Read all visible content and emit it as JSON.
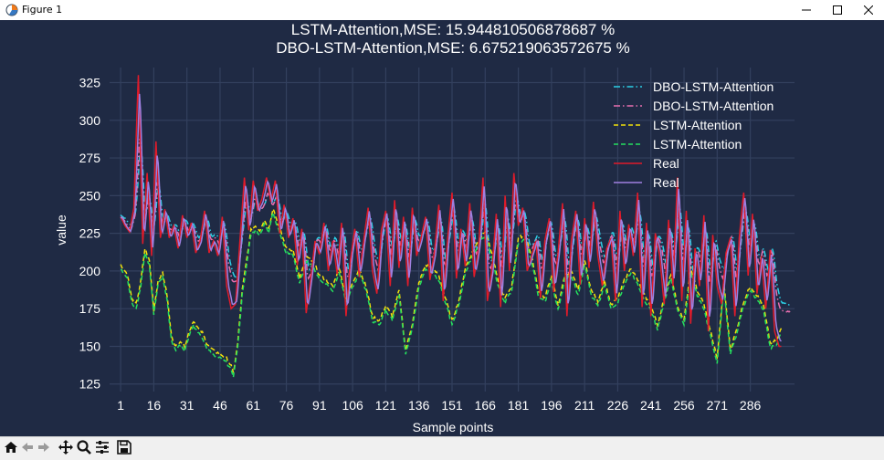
{
  "window": {
    "title": "Figure 1",
    "icons": [
      "matplotlib-icon",
      "minimize-icon",
      "maximize-icon",
      "close-icon"
    ]
  },
  "toolbar": {
    "icons": [
      "home-icon",
      "back-arrow-icon",
      "forward-arrow-icon",
      "pan-icon",
      "zoom-icon",
      "configure-subplots-icon",
      "save-icon"
    ]
  },
  "chart_data": {
    "type": "line",
    "title": "LSTM-Attention,MSE: 15.944810506878687 %",
    "subtitle": "DBO-LSTM-Attention,MSE: 6.675219063572675 %",
    "xlabel": "Sample points",
    "ylabel": "value",
    "xlim": [
      -4,
      306
    ],
    "ylim": [
      120,
      335
    ],
    "xticks": [
      1,
      16,
      31,
      46,
      61,
      76,
      91,
      106,
      121,
      136,
      151,
      166,
      181,
      196,
      211,
      226,
      241,
      256,
      271,
      286
    ],
    "yticks": [
      125,
      150,
      175,
      200,
      225,
      250,
      275,
      300,
      325
    ],
    "grid": true,
    "legend_position": "top-right",
    "background_color": "#1f2a44",
    "real_anchors": {
      "x": [
        1,
        3,
        5,
        7,
        9,
        11,
        13,
        15,
        17,
        19,
        21,
        23,
        25,
        27,
        29,
        31,
        33,
        35,
        37,
        39,
        41,
        43,
        45,
        47,
        49,
        51,
        53,
        55,
        57,
        59,
        61,
        63,
        65,
        67,
        69,
        71,
        73,
        75,
        77,
        79,
        81,
        83,
        85,
        87,
        89,
        91,
        93,
        95,
        97,
        99,
        101,
        103,
        105,
        107,
        109,
        111,
        113,
        115,
        117,
        119,
        121,
        123,
        125,
        127,
        129,
        131,
        133,
        135,
        137,
        139,
        141,
        143,
        145,
        147,
        149,
        151,
        153,
        155,
        157,
        159,
        161,
        163,
        165,
        167,
        169,
        171,
        173,
        175,
        177,
        179,
        181,
        183,
        185,
        187,
        189,
        191,
        193,
        195,
        197,
        199,
        201,
        203,
        205,
        207,
        209,
        211,
        213,
        215,
        217,
        219,
        221,
        223,
        225,
        227,
        229,
        231,
        233,
        235,
        237,
        239,
        241,
        243,
        245,
        247,
        249,
        251,
        253,
        255,
        257,
        259,
        261,
        263,
        265,
        267,
        269,
        271,
        273,
        275,
        277,
        279,
        281,
        283,
        285,
        287,
        289,
        291,
        293,
        295,
        297,
        299
      ],
      "y": [
        236,
        230,
        226,
        242,
        330,
        218,
        265,
        210,
        286,
        222,
        241,
        222,
        230,
        215,
        237,
        222,
        232,
        212,
        220,
        240,
        212,
        220,
        210,
        236,
        190,
        175,
        178,
        220,
        262,
        227,
        260,
        240,
        248,
        262,
        246,
        260,
        225,
        244,
        222,
        235,
        204,
        228,
        172,
        195,
        220,
        211,
        232,
        200,
        220,
        198,
        232,
        170,
        207,
        228,
        196,
        220,
        242,
        200,
        185,
        227,
        240,
        190,
        247,
        202,
        236,
        190,
        242,
        210,
        222,
        236,
        194,
        212,
        244,
        180,
        222,
        252,
        195,
        228,
        203,
        245,
        196,
        215,
        262,
        180,
        200,
        238,
        176,
        250,
        200,
        265,
        230,
        242,
        200,
        210,
        220,
        182,
        220,
        235,
        186,
        212,
        245,
        170,
        220,
        240,
        191,
        235,
        202,
        246,
        210,
        190,
        215,
        222,
        180,
        240,
        200,
        231,
        210,
        252,
        176,
        232,
        170,
        225,
        210,
        178,
        234,
        190,
        262,
        180,
        240,
        165,
        215,
        190,
        237,
        160,
        224,
        190,
        178,
        212,
        222,
        170,
        222,
        252,
        197,
        238,
        185,
        210,
        175,
        214,
        160,
        150
      ]
    },
    "lstm_anchors": {
      "x": [
        1,
        4,
        6,
        8,
        10,
        12,
        14,
        16,
        18,
        20,
        22,
        24,
        26,
        28,
        30,
        32,
        34,
        36,
        38,
        40,
        43,
        46,
        49,
        51,
        52,
        54,
        56,
        58,
        60,
        62,
        64,
        66,
        68,
        70,
        72,
        74,
        76,
        79,
        82,
        85,
        88,
        91,
        94,
        97,
        100,
        103,
        106,
        109,
        112,
        115,
        118,
        121,
        124,
        127,
        130,
        133,
        136,
        139,
        142,
        145,
        148,
        151,
        154,
        157,
        160,
        163,
        166,
        169,
        172,
        175,
        178,
        181,
        184,
        187,
        190,
        193,
        196,
        199,
        202,
        205,
        208,
        211,
        214,
        217,
        220,
        223,
        226,
        229,
        232,
        235,
        238,
        241,
        244,
        247,
        250,
        253,
        256,
        259,
        262,
        265,
        268,
        271,
        274,
        277,
        280,
        283,
        286,
        289,
        292,
        295,
        298,
        300
      ],
      "y": [
        202,
        196,
        180,
        176,
        190,
        213,
        205,
        172,
        192,
        197,
        182,
        155,
        148,
        152,
        148,
        158,
        165,
        160,
        157,
        150,
        145,
        143,
        140,
        135,
        130,
        150,
        185,
        205,
        225,
        228,
        225,
        232,
        226,
        240,
        230,
        222,
        213,
        212,
        193,
        207,
        205,
        195,
        192,
        188,
        200,
        180,
        190,
        200,
        188,
        168,
        165,
        175,
        168,
        185,
        145,
        163,
        190,
        202,
        200,
        195,
        180,
        165,
        178,
        200,
        210,
        218,
        225,
        210,
        190,
        180,
        188,
        220,
        222,
        208,
        185,
        180,
        195,
        175,
        195,
        198,
        185,
        205,
        185,
        178,
        192,
        175,
        180,
        192,
        200,
        192,
        182,
        175,
        162,
        180,
        196,
        175,
        165,
        200,
        185,
        176,
        158,
        140,
        190,
        146,
        160,
        178,
        188,
        182,
        175,
        150,
        152,
        160
      ]
    },
    "series": [
      {
        "name": "DBO-LSTM-Attention",
        "color": "#2bd0e6",
        "style": "dashdot",
        "source": "real",
        "lag": 0.8,
        "smooth": 0.45,
        "scale": 0.68,
        "offset": 4,
        "seed": 11,
        "noise": 3,
        "clip": 304
      },
      {
        "name": "DBO-LSTM-Attention",
        "color": "#e86fb0",
        "style": "dashdot",
        "source": "real",
        "lag": 0.5,
        "smooth": 0.5,
        "scale": 0.72,
        "offset": 2,
        "seed": 23,
        "noise": 2,
        "clip": 304
      },
      {
        "name": "LSTM-Attention",
        "color": "#f2e10a",
        "style": "dashed",
        "source": "lstm",
        "lag": 0,
        "smooth": 1,
        "scale": 1,
        "offset": 2,
        "seed": 5,
        "noise": 2,
        "clip": 300
      },
      {
        "name": "LSTM-Attention",
        "color": "#25e05e",
        "style": "dashed",
        "source": "lstm",
        "lag": 0,
        "smooth": 1,
        "scale": 1,
        "offset": -1,
        "seed": 7,
        "noise": 2,
        "clip": 300
      },
      {
        "name": "Real",
        "color": "#e01b2a",
        "style": "solid",
        "source": "real",
        "lag": 0,
        "smooth": 1,
        "scale": 1,
        "offset": 0,
        "seed": 0,
        "noise": 0,
        "clip": 300
      },
      {
        "name": "Real",
        "color": "#a080e0",
        "style": "solid",
        "source": "real",
        "lag": 0.6,
        "smooth": 0.85,
        "scale": 0.96,
        "offset": 0,
        "seed": 3,
        "noise": 1,
        "clip": 300
      }
    ]
  }
}
